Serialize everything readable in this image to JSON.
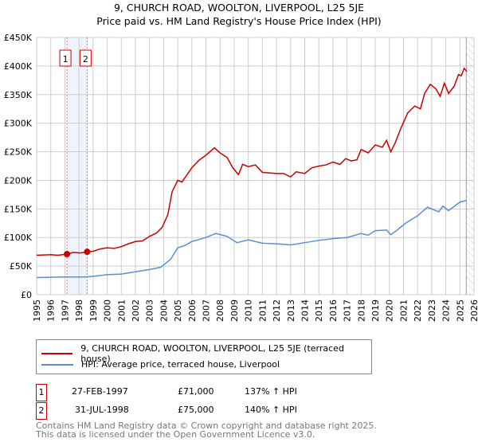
{
  "chart_data": {
    "type": "line",
    "title": "9, CHURCH ROAD, WOOLTON, LIVERPOOL, L25 5JE",
    "subtitle": "Price paid vs. HM Land Registry's House Price Index (HPI)",
    "xlim": [
      1995,
      2026
    ],
    "ylim": [
      0,
      450000
    ],
    "yticks": [
      0,
      50000,
      100000,
      150000,
      200000,
      250000,
      300000,
      350000,
      400000,
      450000
    ],
    "ytick_labels": [
      "£0",
      "£50K",
      "£100K",
      "£150K",
      "£200K",
      "£250K",
      "£300K",
      "£350K",
      "£400K",
      "£450K"
    ],
    "xticks": [
      1995,
      1996,
      1997,
      1998,
      1999,
      2000,
      2001,
      2002,
      2003,
      2004,
      2005,
      2006,
      2007,
      2008,
      2009,
      2010,
      2011,
      2012,
      2013,
      2014,
      2015,
      2016,
      2017,
      2018,
      2019,
      2020,
      2021,
      2022,
      2023,
      2024,
      2025,
      2026
    ],
    "grid": true,
    "forecast_start": 2025.45,
    "series": [
      {
        "name": "9, CHURCH ROAD, WOOLTON, LIVERPOOL, L25 5JE (terraced house)",
        "color": "#cc0000",
        "x": [
          1995,
          1996,
          1996.5,
          1997.15,
          1997.6,
          1998.1,
          1998.58,
          1999,
          1999.5,
          2000,
          2000.5,
          2001,
          2001.5,
          2002,
          2002.5,
          2003,
          2003.5,
          2003.9,
          2004.3,
          2004.6,
          2005,
          2005.3,
          2006,
          2006.5,
          2007,
          2007.6,
          2008,
          2008.5,
          2008.9,
          2009.3,
          2009.6,
          2010,
          2010.5,
          2011,
          2011.5,
          2012,
          2012.5,
          2013,
          2013.4,
          2014,
          2014.5,
          2015,
          2015.5,
          2016,
          2016.5,
          2016.9,
          2017.3,
          2017.7,
          2018,
          2018.5,
          2019,
          2019.5,
          2019.8,
          2020.1,
          2020.4,
          2020.8,
          2021.3,
          2021.8,
          2022.2,
          2022.5,
          2022.9,
          2023.3,
          2023.6,
          2023.9,
          2024.2,
          2024.6,
          2024.9,
          2025.1,
          2025.3,
          2025.5
        ],
        "y": [
          69000,
          70000,
          69000,
          71000,
          74000,
          73000,
          75000,
          76000,
          80000,
          82000,
          81000,
          84000,
          89000,
          93000,
          94000,
          102000,
          108000,
          118000,
          140000,
          180000,
          200000,
          197000,
          222000,
          235000,
          244000,
          257000,
          248000,
          240000,
          222000,
          210000,
          228000,
          224000,
          227000,
          214000,
          213000,
          212000,
          212000,
          206000,
          215000,
          212000,
          222000,
          225000,
          227000,
          232000,
          228000,
          238000,
          234000,
          236000,
          254000,
          248000,
          262000,
          258000,
          270000,
          250000,
          265000,
          290000,
          318000,
          330000,
          325000,
          352000,
          368000,
          360000,
          347000,
          370000,
          352000,
          365000,
          385000,
          383000,
          396000,
          390000
        ]
      },
      {
        "name": "HPI: Average price, terraced house, Liverpool",
        "color": "#5b8fd1",
        "x": [
          1995,
          1997,
          1998.5,
          1999,
          2000,
          2001,
          2002,
          2003,
          2003.8,
          2004.5,
          2005,
          2005.5,
          2006,
          2007,
          2007.7,
          2008.5,
          2009.2,
          2010,
          2011,
          2012,
          2013,
          2014,
          2015,
          2016,
          2017,
          2018,
          2018.5,
          2019,
          2019.8,
          2020.1,
          2020.5,
          2021.2,
          2022,
          2022.7,
          2023.5,
          2023.8,
          2024.2,
          2025,
          2025.5
        ],
        "y": [
          30000,
          31000,
          31000,
          32000,
          35000,
          36000,
          40000,
          44000,
          48000,
          62000,
          82000,
          86000,
          93000,
          100000,
          107000,
          102000,
          91000,
          96000,
          90000,
          89000,
          87000,
          91000,
          95000,
          98000,
          100000,
          107000,
          104000,
          112000,
          113000,
          105000,
          112000,
          126000,
          138000,
          153000,
          145000,
          155000,
          147000,
          162000,
          165000
        ]
      }
    ],
    "sales": [
      {
        "label": "1",
        "x": 1997.15,
        "price": 71000,
        "date": "27-FEB-1997",
        "price_text": "£71,000",
        "hpi": "137% ↑ HPI"
      },
      {
        "label": "2",
        "x": 1998.58,
        "price": 75000,
        "date": "31-JUL-1998",
        "price_text": "£75,000",
        "hpi": "140% ↑ HPI"
      }
    ]
  },
  "footer": [
    "Contains HM Land Registry data © Crown copyright and database right 2025.",
    "This data is licensed under the Open Government Licence v3.0."
  ]
}
